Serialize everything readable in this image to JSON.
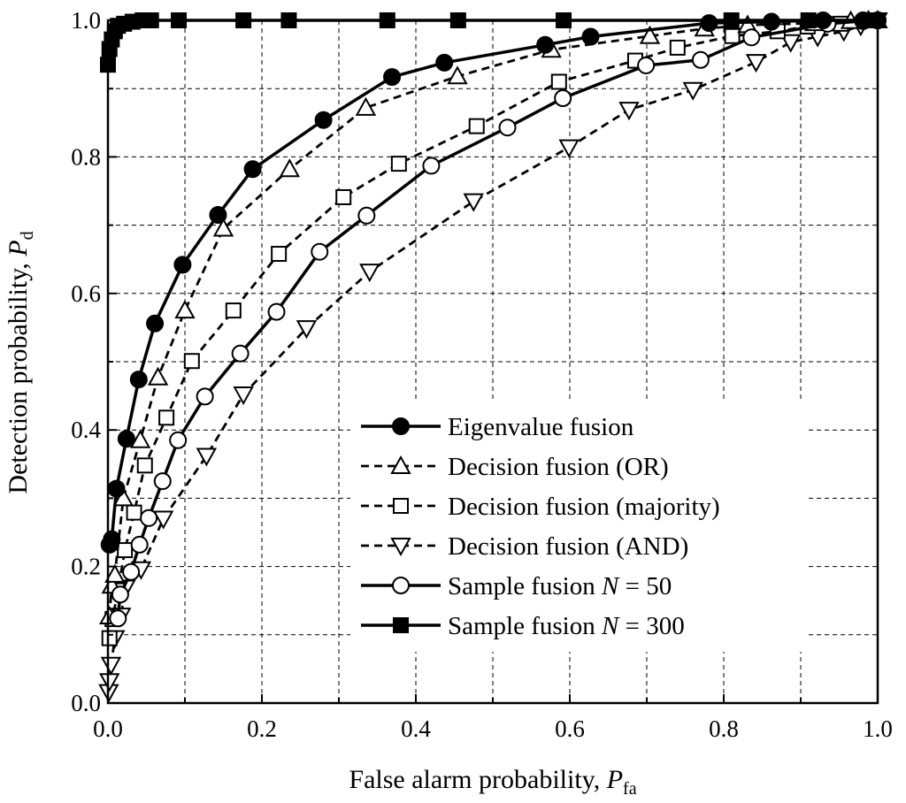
{
  "chart_data": {
    "type": "line",
    "xlabel": "False alarm probability, ",
    "xlabel_var": "P",
    "xlabel_sub": "fa",
    "ylabel": "Detection probability, ",
    "ylabel_var": "P",
    "ylabel_sub": "d",
    "xlim": [
      0,
      1
    ],
    "ylim": [
      0,
      1
    ],
    "xticks": [
      "0.0",
      "0.2",
      "0.4",
      "0.6",
      "0.8",
      "1.0"
    ],
    "yticks": [
      "0.0",
      "0.2",
      "0.4",
      "0.6",
      "0.8",
      "1.0"
    ],
    "grid": true,
    "legend_position": "bottom-right",
    "series": [
      {
        "name": "Eigenvalue fusion",
        "key": "eigenvalue",
        "line": "solid",
        "marker": "circle",
        "fill": "filled",
        "x": [
          0.002,
          0.005,
          0.011,
          0.024,
          0.04,
          0.061,
          0.097,
          0.143,
          0.188,
          0.28,
          0.369,
          0.437,
          0.568,
          0.627,
          0.781,
          0.862,
          0.929,
          0.981,
          1.0
        ],
        "y": [
          0.232,
          0.24,
          0.314,
          0.387,
          0.474,
          0.556,
          0.642,
          0.715,
          0.782,
          0.854,
          0.917,
          0.938,
          0.964,
          0.976,
          0.996,
          0.998,
          1.0,
          1.0,
          1.0
        ]
      },
      {
        "name": "Decision fusion (OR)",
        "key": "or",
        "line": "dashed",
        "marker": "triangle-up",
        "fill": "hollow",
        "x": [
          0.002,
          0.005,
          0.009,
          0.02,
          0.042,
          0.065,
          0.1,
          0.15,
          0.236,
          0.335,
          0.454,
          0.576,
          0.704,
          0.775,
          0.831,
          0.918,
          0.965,
          0.988,
          1.0
        ],
        "y": [
          0.127,
          0.172,
          0.188,
          0.3,
          0.385,
          0.477,
          0.575,
          0.695,
          0.782,
          0.872,
          0.918,
          0.957,
          0.977,
          0.988,
          0.993,
          0.996,
          0.999,
          1.0,
          1.0
        ]
      },
      {
        "name": "Decision fusion (majority)",
        "key": "majority",
        "line": "dashed",
        "marker": "square",
        "fill": "hollow",
        "x": [
          0.002,
          0.006,
          0.013,
          0.022,
          0.034,
          0.048,
          0.076,
          0.109,
          0.163,
          0.222,
          0.306,
          0.378,
          0.479,
          0.586,
          0.685,
          0.74,
          0.811,
          0.87,
          0.909,
          0.952,
          1.0
        ],
        "y": [
          0.095,
          0.123,
          0.165,
          0.224,
          0.279,
          0.348,
          0.418,
          0.501,
          0.575,
          0.658,
          0.741,
          0.79,
          0.845,
          0.91,
          0.941,
          0.96,
          0.977,
          0.984,
          0.991,
          0.995,
          1.0
        ]
      },
      {
        "name": "Decision fusion (AND)",
        "key": "and",
        "line": "dashed",
        "marker": "triangle-down",
        "fill": "hollow",
        "x": [
          0.001,
          0.002,
          0.004,
          0.009,
          0.017,
          0.023,
          0.043,
          0.072,
          0.128,
          0.176,
          0.258,
          0.34,
          0.475,
          0.599,
          0.677,
          0.76,
          0.842,
          0.887,
          0.922,
          0.956,
          0.978,
          1.0
        ],
        "y": [
          0.016,
          0.032,
          0.056,
          0.095,
          0.128,
          0.169,
          0.196,
          0.27,
          0.362,
          0.452,
          0.549,
          0.632,
          0.735,
          0.814,
          0.869,
          0.898,
          0.939,
          0.968,
          0.976,
          0.984,
          0.992,
          1.0
        ]
      },
      {
        "name": "Sample fusion N = 50",
        "name_prefix": "Sample fusion ",
        "name_var": "N",
        "name_suffix": " = 50",
        "key": "n50",
        "line": "solid",
        "marker": "circle",
        "fill": "hollow",
        "x": [
          0.013,
          0.016,
          0.03,
          0.041,
          0.053,
          0.071,
          0.091,
          0.126,
          0.172,
          0.219,
          0.275,
          0.336,
          0.42,
          0.519,
          0.591,
          0.699,
          0.77,
          0.836,
          0.935,
          0.981,
          1.0
        ],
        "y": [
          0.124,
          0.159,
          0.192,
          0.232,
          0.271,
          0.325,
          0.385,
          0.449,
          0.512,
          0.573,
          0.661,
          0.714,
          0.787,
          0.843,
          0.886,
          0.934,
          0.942,
          0.975,
          0.995,
          0.999,
          1.0
        ]
      },
      {
        "name": "Sample fusion N = 300",
        "name_prefix": "Sample fusion ",
        "name_var": "N",
        "name_suffix": " = 300",
        "key": "n300",
        "line": "solid",
        "marker": "square",
        "fill": "filled",
        "x": [
          0.0,
          0.002,
          0.005,
          0.009,
          0.013,
          0.021,
          0.032,
          0.045,
          0.056,
          0.092,
          0.176,
          0.235,
          0.363,
          0.455,
          0.592,
          0.81,
          0.91,
          1.0
        ],
        "y": [
          0.935,
          0.958,
          0.972,
          0.984,
          0.992,
          0.995,
          0.998,
          1.0,
          1.0,
          1.0,
          1.0,
          1.0,
          1.0,
          1.0,
          1.0,
          1.0,
          1.0,
          1.0
        ]
      }
    ]
  }
}
